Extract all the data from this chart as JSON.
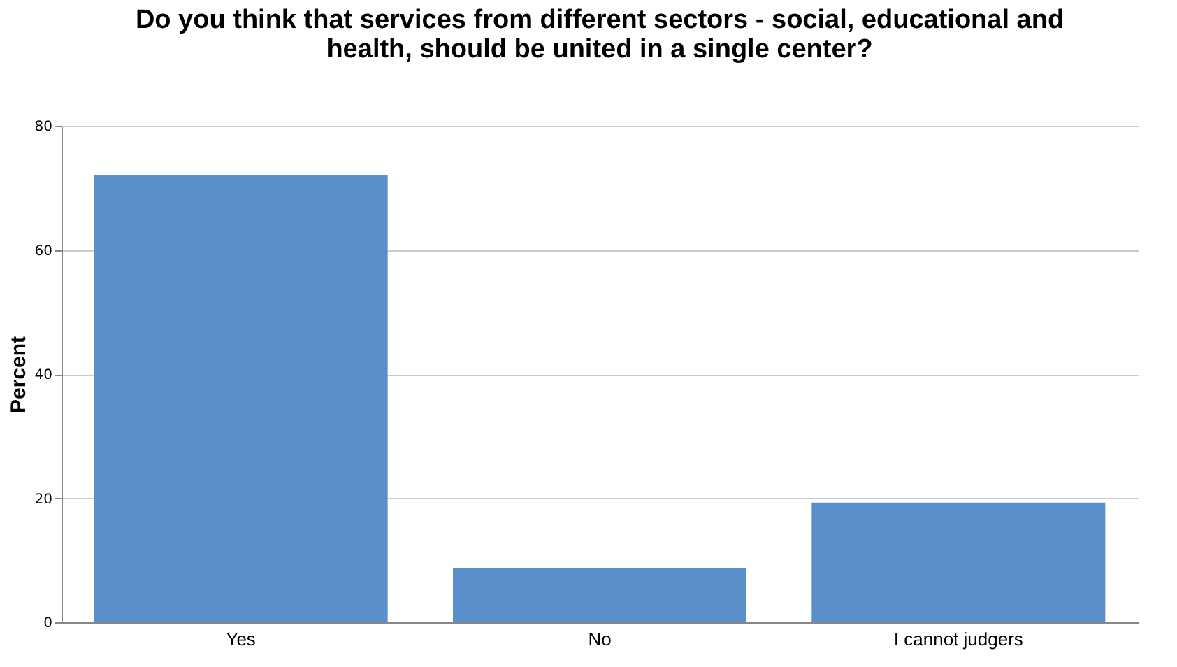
{
  "chart_data": {
    "type": "bar",
    "title": [
      "Do you think that services from different sectors - social, educational and",
      "health, should be united in a single center?"
    ],
    "categories": [
      "Yes",
      "No",
      "I cannot judgers"
    ],
    "values": [
      72.1,
      8.7,
      19.3
    ],
    "color": "#5990cb",
    "ylabel": "Percent",
    "ylim": [
      0,
      80
    ],
    "yticks": [
      0,
      20,
      40,
      60,
      80
    ],
    "grid": "y"
  }
}
